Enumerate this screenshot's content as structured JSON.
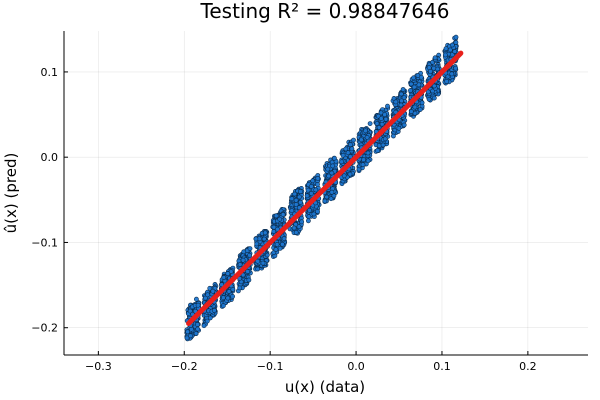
{
  "chart_data": {
    "type": "scatter",
    "title": "Testing R² = 0.98847646",
    "xlabel": "u(x) (data)",
    "ylabel": "û(x) (pred)",
    "xlim": [
      -0.34,
      0.27
    ],
    "ylim": [
      -0.232,
      0.148
    ],
    "xticks": [
      -0.3,
      -0.2,
      -0.1,
      0.0,
      0.1,
      0.2
    ],
    "xtick_labels": [
      "−0.3",
      "−0.2",
      "−0.1",
      "0.0",
      "0.1",
      "0.2"
    ],
    "yticks": [
      -0.2,
      -0.1,
      0.0,
      0.1
    ],
    "ytick_labels": [
      "−0.2",
      "−0.1",
      "0.0",
      "0.1"
    ],
    "grid": true,
    "legend": "none",
    "scatter_color": "#1f77d0",
    "fit_color": "#e8201b",
    "fit_line": {
      "x": [
        -0.195,
        0.122
      ],
      "y": [
        -0.195,
        0.122
      ]
    },
    "clusters": [
      {
        "x": -0.19,
        "y_range": [
          -0.21,
          -0.17
        ]
      },
      {
        "x": -0.17,
        "y_range": [
          -0.19,
          -0.155
        ]
      },
      {
        "x": -0.15,
        "y_range": [
          -0.17,
          -0.135
        ]
      },
      {
        "x": -0.13,
        "y_range": [
          -0.15,
          -0.11
        ]
      },
      {
        "x": -0.11,
        "y_range": [
          -0.13,
          -0.09
        ]
      },
      {
        "x": -0.09,
        "y_range": [
          -0.11,
          -0.065
        ]
      },
      {
        "x": -0.07,
        "y_range": [
          -0.09,
          -0.04
        ]
      },
      {
        "x": -0.05,
        "y_range": [
          -0.07,
          -0.025
        ]
      },
      {
        "x": -0.03,
        "y_range": [
          -0.05,
          -0.005
        ]
      },
      {
        "x": -0.01,
        "y_range": [
          -0.025,
          0.015
        ]
      },
      {
        "x": 0.01,
        "y_range": [
          -0.01,
          0.035
        ]
      },
      {
        "x": 0.03,
        "y_range": [
          0.01,
          0.055
        ]
      },
      {
        "x": 0.05,
        "y_range": [
          0.03,
          0.075
        ]
      },
      {
        "x": 0.07,
        "y_range": [
          0.05,
          0.095
        ]
      },
      {
        "x": 0.09,
        "y_range": [
          0.07,
          0.115
        ]
      },
      {
        "x": 0.11,
        "y_range": [
          0.09,
          0.135
        ]
      }
    ]
  }
}
